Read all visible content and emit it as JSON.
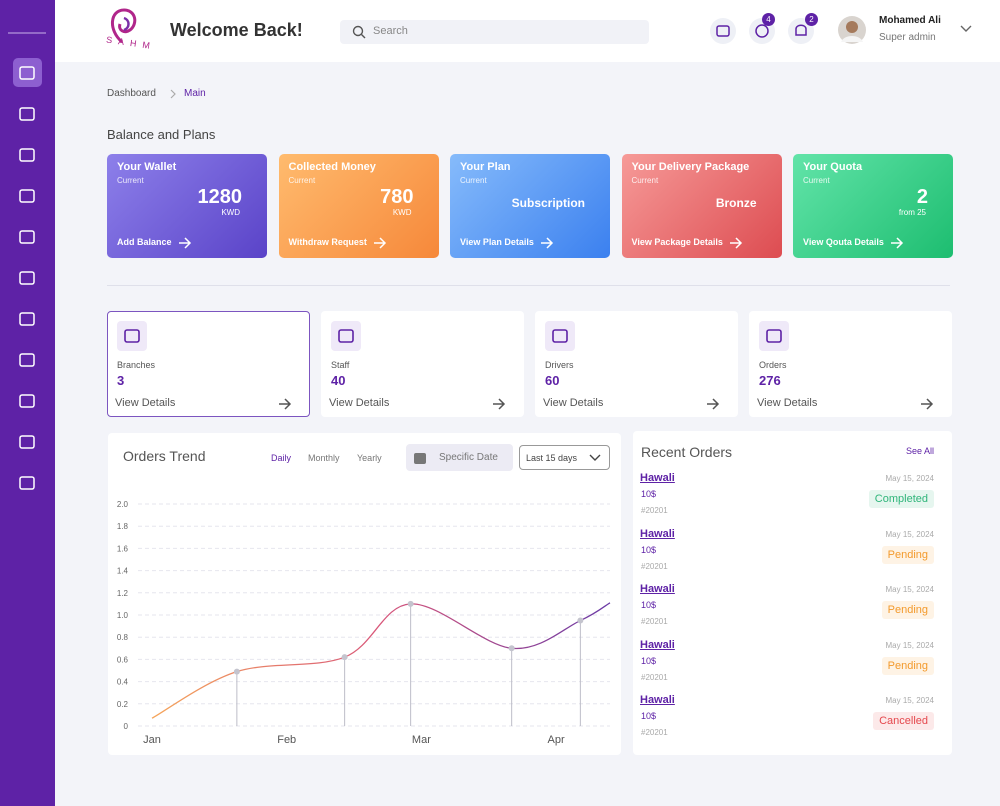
{
  "logo": {
    "text": "SAHM"
  },
  "header": {
    "title": "Welcome Back!",
    "search_placeholder": "Search",
    "messages_count": 4,
    "notifications_count": 2,
    "user_name": "Mohamed Ali",
    "user_role": "Super admin"
  },
  "breadcrumb": [
    "Dashboard",
    "Main"
  ],
  "balance_and_plans": {
    "title": "Balance and Plans",
    "cards": [
      {
        "title": "Your Wallet",
        "subtitle": "Current",
        "value": 1280,
        "unit": "KWD",
        "action": "Add Balance",
        "colors": [
          "#8d80ea",
          "#5a43c8"
        ]
      },
      {
        "title": "Collected Money",
        "subtitle": "Current",
        "value": 780,
        "unit": "KWD",
        "action": "Withdraw Request",
        "colors": [
          "#ffbb6e",
          "#f6883a"
        ]
      },
      {
        "title": "Your Plan",
        "subtitle": "Current",
        "value": "Subscription",
        "action": "View Plan Details",
        "colors": [
          "#86bbfb",
          "#3b80ef"
        ]
      },
      {
        "title": "Your Delivery Package",
        "subtitle": "Current",
        "value": "Bronze",
        "action": "View Package Details",
        "colors": [
          "#f69a98",
          "#dd4c51"
        ]
      },
      {
        "title": "Your Quota",
        "subtitle": "Current",
        "value": 2,
        "unit": "from 25",
        "action": "View Qouta Details",
        "colors": [
          "#62e4a9",
          "#1dbd70"
        ]
      }
    ]
  },
  "summary": [
    {
      "label": "Branches",
      "value": 3,
      "action": "View Details"
    },
    {
      "label": "Staff",
      "value": 40,
      "action": "View Details"
    },
    {
      "label": "Drivers",
      "value": 60,
      "action": "View Details"
    },
    {
      "label": "Orders",
      "value": 276,
      "action": "View Details"
    }
  ],
  "orders_trend": {
    "periods": [
      "Daily",
      "Monthly",
      "Yearly"
    ],
    "active_period": 0,
    "date_button": "Specific Date",
    "range": "Last 15 days"
  },
  "chart_data": {
    "type": "line",
    "title": "Orders Trend",
    "x": [
      0,
      0.63,
      1.43,
      1.92,
      2.67,
      3.18,
      3.4
    ],
    "series": [
      {
        "values": [
          0.07,
          0.49,
          0.62,
          1.1,
          0.7,
          0.95,
          1.11
        ],
        "colors": [
          "#f5a55a",
          "#d8567a",
          "#6a3aa6"
        ]
      }
    ],
    "xlim": [
      0,
      3.4
    ],
    "xticks": [
      {
        "value": 0,
        "label": "Jan"
      },
      {
        "value": 1,
        "label": "Feb"
      },
      {
        "value": 2,
        "label": "Mar"
      },
      {
        "value": 3,
        "label": "Apr"
      }
    ],
    "ylim": [
      0,
      2
    ],
    "yticks": [
      0,
      0.2,
      0.4,
      0.6,
      0.8,
      {
        "value": 1,
        "label": "1.0"
      },
      1.2,
      1.4,
      1.6,
      1.8,
      {
        "value": 2,
        "label": "2.0"
      }
    ],
    "grid": true
  },
  "recent_orders": {
    "title": "Recent Orders",
    "see_all": "See All",
    "orders": [
      {
        "location": "Hawali",
        "price": "10$",
        "id": "#20201",
        "date": "May 15, 2024",
        "status": "Completed",
        "color": "#2fb57a"
      },
      {
        "location": "Hawali",
        "price": "10$",
        "id": "#20201",
        "date": "May 15, 2024",
        "status": "Pending",
        "color": "#f39a2c"
      },
      {
        "location": "Hawali",
        "price": "10$",
        "id": "#20201",
        "date": "May 15, 2024",
        "status": "Pending",
        "color": "#f39a2c"
      },
      {
        "location": "Hawali",
        "price": "10$",
        "id": "#20201",
        "date": "May 15, 2024",
        "status": "Pending",
        "color": "#f39a2c"
      },
      {
        "location": "Hawali",
        "price": "10$",
        "id": "#20201",
        "date": "May 15, 2024",
        "status": "Cancelled",
        "color": "#e5484d"
      }
    ]
  }
}
